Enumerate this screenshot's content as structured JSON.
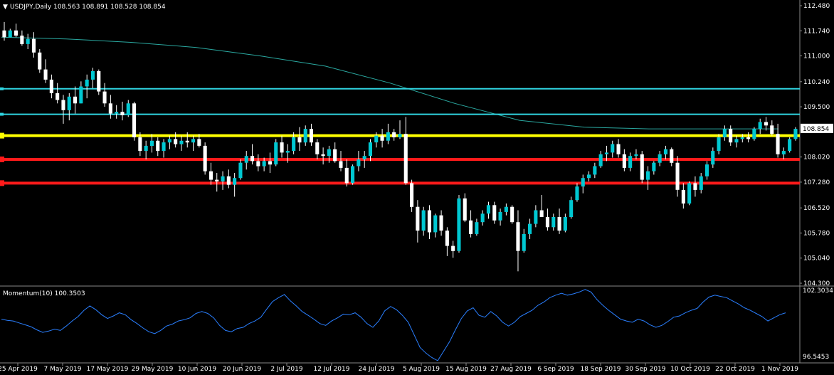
{
  "header": {
    "symbol_line": "USDJPY,Daily  108.563 108.891 108.528 108.854",
    "indicator_line": "Momentum(10) 100.3503"
  },
  "price_axis": {
    "ticks": [
      "112.480",
      "111.740",
      "111.000",
      "110.240",
      "109.500",
      "108.020",
      "107.280",
      "106.520",
      "105.780",
      "105.040",
      "104.300"
    ],
    "current_price": "108.854"
  },
  "momentum_axis": {
    "max_label": "102.3034",
    "min_label": "96.5453"
  },
  "date_labels": [
    "25 Apr 2019",
    "7 May 2019",
    "17 May 2019",
    "29 May 2019",
    "10 Jun 2019",
    "20 Jun 2019",
    "2 Jul 2019",
    "12 Jul 2019",
    "24 Jul 2019",
    "5 Aug 2019",
    "15 Aug 2019",
    "27 Aug 2019",
    "6 Sep 2019",
    "18 Sep 2019",
    "30 Sep 2019",
    "10 Oct 2019",
    "22 Oct 2019",
    "1 Nov 2019"
  ],
  "colors": {
    "background": "#000000",
    "bull_candle": "#00c8d2",
    "bear_candle": "#ffffff",
    "moving_average": "#2aa8a0",
    "cyan_levels": "#2fd4e0",
    "yellow_level": "#ffff00",
    "red_levels": "#ff1a1a",
    "momentum_line": "#2a7fff",
    "axis": "#888888"
  },
  "chart_data": [
    {
      "type": "candlestick",
      "title": "USDJPY,Daily",
      "ylim": [
        104.3,
        112.48
      ],
      "horizontal_levels": {
        "cyan": [
          110.03,
          109.28
        ],
        "yellow": [
          108.65
        ],
        "red": [
          107.95,
          107.25
        ]
      },
      "moving_average": [
        111.55,
        111.5,
        111.4,
        111.25,
        111.0,
        110.7,
        110.2,
        109.6,
        109.1,
        108.9,
        108.85,
        108.85,
        108.85
      ],
      "ohlc": [
        [
          111.75,
          112.0,
          111.45,
          111.55
        ],
        [
          111.55,
          111.8,
          111.55,
          111.75
        ],
        [
          111.75,
          111.95,
          111.55,
          111.6
        ],
        [
          111.6,
          111.75,
          111.3,
          111.35
        ],
        [
          111.35,
          111.65,
          111.2,
          111.5
        ],
        [
          111.5,
          111.7,
          110.95,
          111.1
        ],
        [
          111.1,
          111.2,
          110.5,
          110.6
        ],
        [
          110.6,
          110.9,
          110.2,
          110.3
        ],
        [
          110.3,
          110.45,
          109.75,
          109.9
        ],
        [
          109.9,
          110.2,
          109.6,
          109.7
        ],
        [
          109.7,
          109.85,
          109.0,
          109.4
        ],
        [
          109.4,
          109.9,
          109.1,
          109.8
        ],
        [
          109.8,
          110.1,
          109.3,
          109.6
        ],
        [
          109.6,
          110.25,
          109.6,
          110.1
        ],
        [
          110.1,
          110.45,
          109.75,
          110.3
        ],
        [
          110.3,
          110.65,
          110.05,
          110.55
        ],
        [
          110.55,
          110.6,
          109.85,
          109.95
        ],
        [
          109.95,
          110.2,
          109.5,
          109.6
        ],
        [
          109.6,
          109.85,
          109.15,
          109.3
        ],
        [
          109.3,
          109.55,
          109.15,
          109.35
        ],
        [
          109.35,
          109.65,
          109.1,
          109.25
        ],
        [
          109.25,
          109.7,
          109.2,
          109.6
        ],
        [
          109.6,
          109.65,
          108.5,
          108.6
        ],
        [
          108.6,
          108.75,
          108.05,
          108.2
        ],
        [
          108.2,
          108.5,
          107.95,
          108.35
        ],
        [
          108.35,
          108.7,
          108.15,
          108.5
        ],
        [
          108.5,
          108.6,
          108.05,
          108.2
        ],
        [
          108.2,
          108.55,
          108.0,
          108.45
        ],
        [
          108.45,
          108.65,
          108.25,
          108.55
        ],
        [
          108.55,
          108.75,
          108.3,
          108.4
        ],
        [
          108.4,
          108.65,
          108.2,
          108.5
        ],
        [
          108.5,
          108.75,
          108.3,
          108.45
        ],
        [
          108.45,
          108.65,
          108.2,
          108.55
        ],
        [
          108.55,
          108.7,
          108.3,
          108.35
        ],
        [
          108.35,
          108.45,
          107.5,
          107.6
        ],
        [
          107.6,
          107.85,
          107.2,
          107.35
        ],
        [
          107.35,
          107.55,
          107.0,
          107.3
        ],
        [
          107.3,
          107.6,
          107.05,
          107.45
        ],
        [
          107.45,
          107.65,
          107.1,
          107.2
        ],
        [
          107.2,
          107.55,
          106.85,
          107.4
        ],
        [
          107.4,
          107.95,
          107.35,
          107.85
        ],
        [
          107.85,
          108.2,
          107.65,
          108.05
        ],
        [
          108.05,
          108.4,
          107.8,
          107.9
        ],
        [
          107.9,
          108.1,
          107.6,
          107.75
        ],
        [
          107.75,
          108.0,
          107.6,
          107.9
        ],
        [
          107.9,
          108.15,
          107.55,
          107.8
        ],
        [
          107.8,
          108.55,
          107.75,
          108.45
        ],
        [
          108.45,
          108.65,
          108.0,
          108.15
        ],
        [
          108.15,
          108.4,
          107.85,
          108.2
        ],
        [
          108.2,
          108.75,
          108.1,
          108.6
        ],
        [
          108.6,
          108.9,
          108.2,
          108.45
        ],
        [
          108.45,
          108.95,
          108.35,
          108.85
        ],
        [
          108.85,
          109.0,
          108.35,
          108.45
        ],
        [
          108.45,
          108.55,
          107.95,
          108.1
        ],
        [
          108.1,
          108.3,
          107.8,
          108.05
        ],
        [
          108.05,
          108.35,
          107.85,
          108.25
        ],
        [
          108.25,
          108.45,
          107.85,
          107.9
        ],
        [
          107.9,
          108.2,
          107.6,
          107.7
        ],
        [
          107.7,
          107.95,
          107.15,
          107.25
        ],
        [
          107.25,
          107.8,
          107.2,
          107.75
        ],
        [
          107.75,
          108.2,
          107.6,
          107.95
        ],
        [
          107.95,
          108.2,
          107.7,
          108.05
        ],
        [
          108.05,
          108.55,
          107.9,
          108.45
        ],
        [
          108.45,
          108.75,
          108.3,
          108.65
        ],
        [
          108.65,
          108.85,
          108.3,
          108.5
        ],
        [
          108.5,
          109.0,
          108.4,
          108.75
        ],
        [
          108.75,
          108.85,
          108.5,
          108.6
        ],
        [
          108.6,
          109.1,
          108.55,
          108.7
        ],
        [
          108.7,
          109.2,
          107.2,
          107.25
        ],
        [
          107.25,
          107.35,
          106.4,
          106.55
        ],
        [
          106.55,
          106.75,
          105.5,
          105.85
        ],
        [
          105.85,
          106.55,
          105.7,
          106.45
        ],
        [
          106.45,
          106.6,
          105.6,
          105.8
        ],
        [
          105.8,
          106.35,
          105.65,
          106.3
        ],
        [
          106.3,
          106.45,
          105.7,
          105.85
        ],
        [
          105.85,
          105.95,
          105.1,
          105.4
        ],
        [
          105.4,
          105.55,
          105.05,
          105.25
        ],
        [
          105.25,
          106.9,
          105.2,
          106.8
        ],
        [
          106.8,
          106.95,
          106.1,
          106.15
        ],
        [
          106.15,
          106.45,
          105.65,
          105.75
        ],
        [
          105.75,
          106.2,
          105.7,
          106.1
        ],
        [
          106.1,
          106.45,
          106.0,
          106.35
        ],
        [
          106.35,
          106.7,
          106.2,
          106.6
        ],
        [
          106.6,
          106.7,
          106.05,
          106.15
        ],
        [
          106.15,
          106.5,
          106.0,
          106.4
        ],
        [
          106.4,
          106.65,
          106.3,
          106.55
        ],
        [
          106.55,
          106.6,
          106.05,
          106.1
        ],
        [
          106.1,
          106.45,
          104.65,
          105.25
        ],
        [
          105.25,
          105.9,
          105.2,
          105.75
        ],
        [
          105.75,
          106.2,
          105.6,
          106.05
        ],
        [
          106.05,
          106.6,
          105.95,
          106.45
        ],
        [
          106.45,
          106.9,
          106.3,
          106.25
        ],
        [
          106.25,
          106.5,
          105.85,
          105.95
        ],
        [
          105.95,
          106.35,
          105.85,
          106.25
        ],
        [
          106.25,
          106.5,
          105.75,
          105.85
        ],
        [
          105.85,
          106.35,
          105.8,
          106.25
        ],
        [
          106.25,
          106.85,
          106.2,
          106.75
        ],
        [
          106.75,
          107.25,
          106.7,
          107.15
        ],
        [
          107.15,
          107.5,
          106.95,
          107.4
        ],
        [
          107.4,
          107.6,
          107.3,
          107.5
        ],
        [
          107.5,
          107.85,
          107.4,
          107.75
        ],
        [
          107.75,
          108.2,
          107.7,
          108.1
        ],
        [
          108.1,
          108.35,
          107.9,
          108.15
        ],
        [
          108.15,
          108.5,
          108.0,
          108.4
        ],
        [
          108.4,
          108.55,
          108.0,
          108.1
        ],
        [
          108.1,
          108.25,
          107.6,
          107.7
        ],
        [
          107.7,
          108.15,
          107.6,
          108.05
        ],
        [
          108.05,
          108.25,
          107.95,
          108.1
        ],
        [
          108.1,
          108.2,
          107.25,
          107.35
        ],
        [
          107.35,
          107.75,
          107.05,
          107.6
        ],
        [
          107.6,
          107.9,
          107.5,
          107.85
        ],
        [
          107.85,
          108.2,
          107.75,
          108.1
        ],
        [
          108.1,
          108.35,
          107.95,
          108.25
        ],
        [
          108.25,
          108.3,
          107.75,
          107.85
        ],
        [
          107.85,
          108.05,
          106.85,
          107.05
        ],
        [
          107.05,
          107.25,
          106.5,
          106.65
        ],
        [
          106.65,
          107.3,
          106.6,
          107.25
        ],
        [
          107.25,
          107.45,
          106.85,
          107.05
        ],
        [
          107.05,
          107.55,
          106.95,
          107.45
        ],
        [
          107.45,
          107.9,
          107.35,
          107.8
        ],
        [
          107.8,
          108.3,
          107.7,
          108.2
        ],
        [
          108.2,
          108.7,
          108.1,
          108.6
        ],
        [
          108.6,
          108.95,
          108.5,
          108.85
        ],
        [
          108.85,
          108.95,
          108.35,
          108.45
        ],
        [
          108.45,
          108.65,
          108.3,
          108.55
        ],
        [
          108.55,
          108.7,
          108.45,
          108.6
        ],
        [
          108.6,
          108.75,
          108.45,
          108.55
        ],
        [
          108.55,
          108.9,
          108.5,
          108.85
        ],
        [
          108.85,
          109.15,
          108.7,
          109.05
        ],
        [
          109.05,
          109.2,
          108.8,
          108.95
        ],
        [
          108.95,
          109.1,
          108.65,
          108.7
        ],
        [
          108.7,
          109.0,
          108.0,
          108.1
        ],
        [
          108.1,
          108.3,
          107.95,
          108.2
        ],
        [
          108.2,
          108.6,
          108.15,
          108.55
        ],
        [
          108.55,
          108.9,
          108.5,
          108.85
        ]
      ]
    },
    {
      "type": "line",
      "title": "Momentum(10)",
      "ylim": [
        96.5453,
        102.3034
      ],
      "values": [
        99.85,
        99.75,
        99.7,
        99.55,
        99.4,
        99.25,
        99.0,
        98.8,
        98.9,
        99.05,
        98.95,
        99.3,
        99.7,
        100.05,
        100.55,
        100.9,
        100.6,
        100.2,
        99.9,
        100.1,
        100.35,
        100.2,
        99.8,
        99.5,
        99.15,
        98.85,
        98.7,
        98.95,
        99.3,
        99.45,
        99.7,
        99.8,
        99.95,
        100.3,
        100.45,
        100.3,
        99.95,
        99.35,
        98.95,
        98.85,
        99.1,
        99.2,
        99.5,
        99.7,
        100.0,
        100.65,
        101.25,
        101.55,
        101.8,
        101.3,
        100.9,
        100.45,
        100.15,
        99.85,
        99.5,
        99.35,
        99.7,
        99.95,
        100.25,
        100.2,
        100.35,
        100.0,
        99.5,
        99.2,
        99.7,
        100.5,
        100.85,
        100.6,
        100.15,
        99.6,
        98.6,
        97.6,
        97.15,
        96.8,
        96.55,
        97.3,
        98.05,
        99.0,
        99.9,
        100.5,
        100.75,
        100.15,
        100.0,
        100.45,
        100.1,
        99.6,
        99.3,
        99.6,
        100.05,
        100.3,
        100.55,
        100.95,
        101.2,
        101.55,
        101.75,
        101.9,
        101.75,
        101.85,
        102.0,
        102.2,
        102.0,
        101.4,
        100.95,
        100.55,
        100.2,
        99.85,
        99.7,
        99.6,
        99.85,
        99.7,
        99.4,
        99.2,
        99.35,
        99.65,
        100.0,
        100.1,
        100.35,
        100.55,
        100.7,
        101.2,
        101.6,
        101.75,
        101.65,
        101.55,
        101.3,
        101.05,
        100.75,
        100.55,
        100.3,
        100.05,
        99.7,
        99.95,
        100.2,
        100.35
      ]
    }
  ]
}
